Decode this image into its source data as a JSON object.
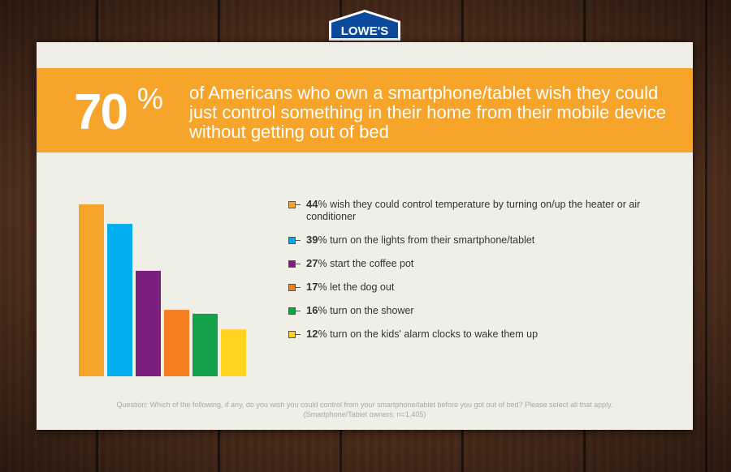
{
  "brand": {
    "name": "LOWE'S",
    "color": "#0b4a9c"
  },
  "headline": {
    "percent": "70",
    "percent_sign": "%",
    "text": "of Americans who own a smartphone/tablet wish they could just control something in their home from their mobile device without getting out of bed"
  },
  "chart_data": {
    "type": "bar",
    "categories": [
      "wish they could control temperature by turning on/up the heater or air conditioner",
      "turn on the lights from their smartphone/tablet",
      "start the coffee pot",
      "let the dog out",
      "turn on the shower",
      "turn on the kids' alarm clocks to wake them up"
    ],
    "values": [
      44,
      39,
      27,
      17,
      16,
      12
    ],
    "value_labels": [
      "44",
      "39",
      "27",
      "17",
      "16",
      "12"
    ],
    "unit": "%",
    "colors": [
      "#f7a42b",
      "#00aeef",
      "#7b1f7f",
      "#f57f20",
      "#12a04a",
      "#ffd21f"
    ],
    "ylim": [
      0,
      44
    ],
    "grid": false,
    "legend": "right"
  },
  "footnote": {
    "question": "Question: Which of the following, if any, do you wish you could control from your smartphone/tablet before you got out of bed? Please select all that apply.",
    "sample": "(Smartphone/Tablet owners, n=1,405)"
  }
}
